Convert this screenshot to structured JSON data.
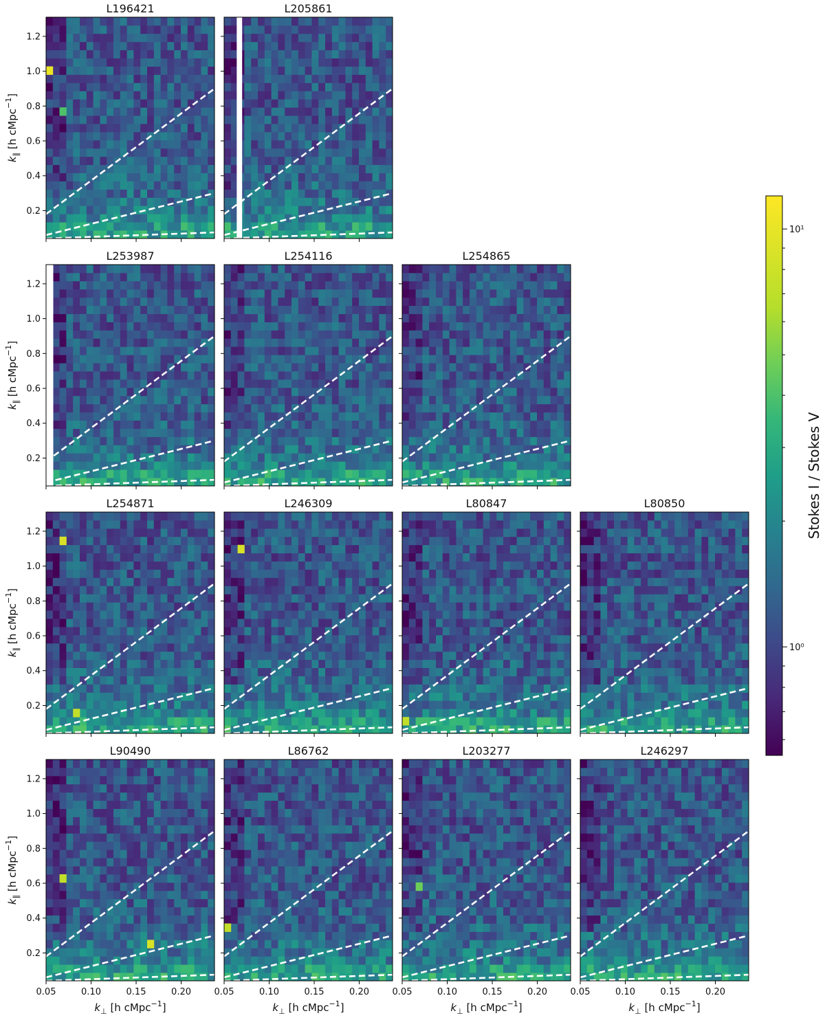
{
  "chart_data": {
    "type": "heatmap",
    "layout": "grid of 4 rows",
    "rows": [
      [
        "L196421",
        "L205861"
      ],
      [
        "L253987",
        "L254116",
        "L254865"
      ],
      [
        "L254871",
        "L246309",
        "L80847",
        "L80850"
      ],
      [
        "L90490",
        "L86762",
        "L203277",
        "L246297"
      ]
    ],
    "xlabel_symbol": "k",
    "xlabel_sub": "⊥",
    "xlabel_unit": " [h cMpc",
    "ylabel_symbol": "k",
    "ylabel_sub": "∥",
    "ylabel_unit": " [h cMpc",
    "unit_exp": "−1",
    "unit_close": "]",
    "xlim": [
      0.05,
      0.237
    ],
    "ylim": [
      0.04,
      1.31
    ],
    "xticks": [
      0.05,
      0.1,
      0.15,
      0.2
    ],
    "xtick_labels": [
      "0.05",
      "0.10",
      "0.15",
      "0.20"
    ],
    "yticks": [
      0.2,
      0.4,
      0.6,
      0.8,
      1.0,
      1.2
    ],
    "ytick_labels": [
      "0.2",
      "0.4",
      "0.6",
      "0.8",
      "1.0",
      "1.2"
    ],
    "colorbar": {
      "label": "Stokes I / Stokes V",
      "scale": "log",
      "range": [
        0.55,
        12
      ],
      "colormap": "viridis",
      "major_ticks": [
        1,
        10
      ],
      "major_tick_labels": [
        "10⁰",
        "10¹"
      ],
      "minor_ticks": [
        0.6,
        0.7,
        0.8,
        0.9,
        2,
        3,
        4,
        5,
        6,
        7,
        8,
        9
      ]
    },
    "wedge_lines": [
      {
        "name": "horizon-line-upper",
        "x": [
          0.05,
          0.237
        ],
        "y": [
          0.18,
          0.9
        ]
      },
      {
        "name": "wedge-line-middle",
        "x": [
          0.05,
          0.237
        ],
        "y": [
          0.06,
          0.3
        ]
      },
      {
        "name": "wedge-line-lower",
        "x": [
          0.05,
          0.237
        ],
        "y": [
          0.04,
          0.075
        ]
      }
    ],
    "wedge_line_style": "white dashed",
    "masked_columns": {
      "L205861": [
        0.064,
        0.07
      ],
      "L253987": [
        0.05,
        0.058
      ]
    },
    "highlighted_cells": [
      {
        "panel": "L196421",
        "x": 0.053,
        "y": 1.0,
        "value": 11
      },
      {
        "panel": "L196421",
        "x": 0.068,
        "y": 0.79,
        "value": 5
      },
      {
        "panel": "L254871",
        "x": 0.068,
        "y": 1.13,
        "value": 10
      },
      {
        "panel": "L254871",
        "x": 0.083,
        "y": 0.18,
        "value": 9
      },
      {
        "panel": "L246309",
        "x": 0.068,
        "y": 1.09,
        "value": 10
      },
      {
        "panel": "L80847",
        "x": 0.053,
        "y": 0.1,
        "value": 9
      },
      {
        "panel": "L90490",
        "x": 0.068,
        "y": 0.62,
        "value": 9
      },
      {
        "panel": "L90490",
        "x": 0.166,
        "y": 0.24,
        "value": 10
      },
      {
        "panel": "L86762",
        "x": 0.053,
        "y": 0.34,
        "value": 9
      },
      {
        "panel": "L203277",
        "x": 0.068,
        "y": 0.58,
        "value": 6
      }
    ],
    "grid": false
  }
}
